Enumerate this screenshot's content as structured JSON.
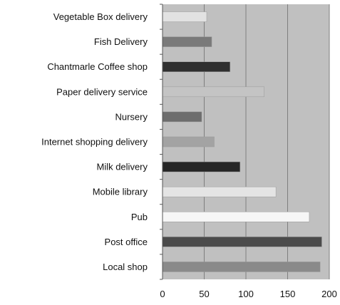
{
  "chart_data": {
    "type": "bar",
    "orientation": "horizontal",
    "categories": [
      "Vegetable Box delivery",
      "Fish Delivery",
      "Chantmarle Coffee shop",
      "Paper delivery service",
      "Nursery",
      "Internet shopping delivery",
      "Milk delivery",
      "Mobile library",
      "Pub",
      "Post office",
      "Local shop"
    ],
    "values": [
      53,
      59,
      81,
      122,
      47,
      62,
      93,
      136,
      176,
      191,
      189
    ],
    "bar_colors": [
      "#e2e2e2",
      "#7a7a7a",
      "#2f2f2f",
      "#c4c4c4",
      "#6d6d6d",
      "#a3a3a3",
      "#262626",
      "#e4e4e4",
      "#f6f6f6",
      "#4b4b4b",
      "#8a8a8a"
    ],
    "xlim": [
      0,
      200
    ],
    "xticks": [
      "0",
      "50",
      "100",
      "150",
      "200"
    ],
    "title": "",
    "xlabel": "",
    "ylabel": "",
    "grid": "vertical",
    "legend": "none",
    "plot_background": "#c0c0c0",
    "gridline_color": "#7f7f7f"
  }
}
